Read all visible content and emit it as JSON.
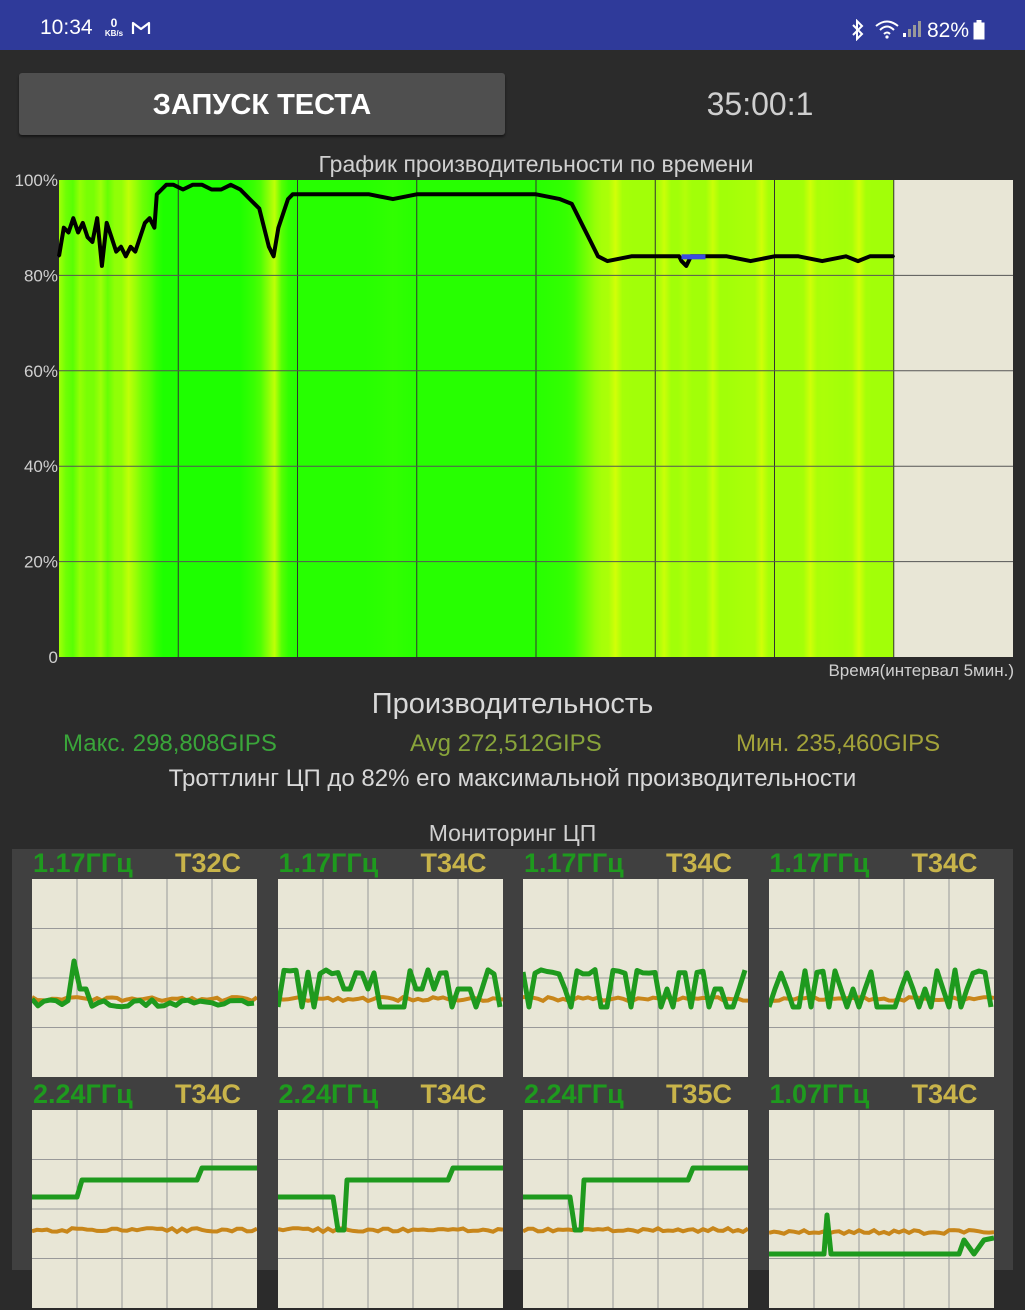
{
  "status_bar": {
    "time": "10:34",
    "net_speed_value": "0",
    "net_speed_unit": "KB/s",
    "battery": "82%",
    "icons": [
      "gmail-icon",
      "bluetooth-icon",
      "wifi-icon",
      "signal-icon",
      "battery-icon"
    ]
  },
  "controls": {
    "start_button": "ЗАПУСК ТЕСТА",
    "timer": "35:00:1"
  },
  "chart_data": {
    "type": "line",
    "title": "График производительности по времени",
    "xlabel": "Время(интервал 5мин.)",
    "ylabel": "",
    "ylim": [
      0,
      100
    ],
    "yticks": [
      "0",
      "20%",
      "40%",
      "60%",
      "80%",
      "100%"
    ],
    "x_unit": "minutes",
    "x_max": 40,
    "grid": true,
    "series": [
      {
        "x": [
          0,
          0.2,
          0.4,
          0.6,
          0.8,
          1.0,
          1.2,
          1.4,
          1.6,
          1.8,
          2.0,
          2.2,
          2.4,
          2.6,
          2.8,
          3.0,
          3.2,
          3.4,
          3.6,
          3.8,
          4.0,
          4.1,
          4.3,
          4.5,
          4.8,
          5.2,
          5.6,
          6.0,
          6.4,
          6.8,
          7.2,
          7.6,
          8.0,
          8.4,
          8.8,
          9.0,
          9.2,
          9.4,
          9.6,
          9.8,
          10.0,
          10.4,
          11.0,
          12.0,
          13.0,
          14.0,
          15.0,
          16.0,
          17.0,
          18.0,
          19.0,
          20.0,
          21.0,
          21.5,
          22.0,
          22.3,
          22.6,
          23.0,
          24.0,
          25.0,
          26.0,
          26.1,
          26.3,
          26.5,
          27.0,
          28.0,
          29.0,
          30.0,
          31.0,
          32.0,
          33.0,
          33.5,
          34.0,
          35.0
        ],
        "y": [
          84,
          90,
          89,
          92,
          89,
          91,
          88,
          87,
          92,
          82,
          91,
          88,
          85,
          86,
          84,
          86,
          85,
          88,
          91,
          92,
          90,
          97,
          98,
          99,
          99,
          98,
          99,
          99,
          98,
          98,
          99,
          98,
          96,
          94,
          86,
          84,
          90,
          93,
          96,
          97,
          97,
          97,
          97,
          97,
          97,
          96,
          97,
          97,
          97,
          97,
          97,
          97,
          96,
          95,
          90,
          87,
          84,
          83,
          84,
          84,
          84,
          83,
          82,
          84,
          84,
          84,
          83,
          84,
          84,
          83,
          84,
          83,
          84,
          84
        ],
        "color": "#000000"
      }
    ]
  },
  "performance": {
    "title": "Производительность",
    "max": "Макс. 298,808GIPS",
    "avg": "Avg 272,512GIPS",
    "min": "Мин. 235,460GIPS",
    "throttle": "Троттлинг ЦП до 82% его максимальной производительности"
  },
  "monitor": {
    "title": "Мониторинг ЦП",
    "cores": [
      {
        "freq": "1.17ГГц",
        "temp": "T32C"
      },
      {
        "freq": "1.17ГГц",
        "temp": "T34C"
      },
      {
        "freq": "1.17ГГц",
        "temp": "T34C"
      },
      {
        "freq": "1.17ГГц",
        "temp": "T34C"
      },
      {
        "freq": "2.24ГГц",
        "temp": "T34C"
      },
      {
        "freq": "2.24ГГц",
        "temp": "T34C"
      },
      {
        "freq": "2.24ГГц",
        "temp": "T35C"
      },
      {
        "freq": "1.07ГГц",
        "temp": "T34C"
      }
    ]
  },
  "colors": {
    "status_bar": "#2f3a9a",
    "background": "#2b2b2b",
    "chart_bg": "#e8e6d6",
    "freq_green": "#1e9a1e",
    "temp_orange": "#c8861a",
    "temp_label": "#c8b44a"
  }
}
